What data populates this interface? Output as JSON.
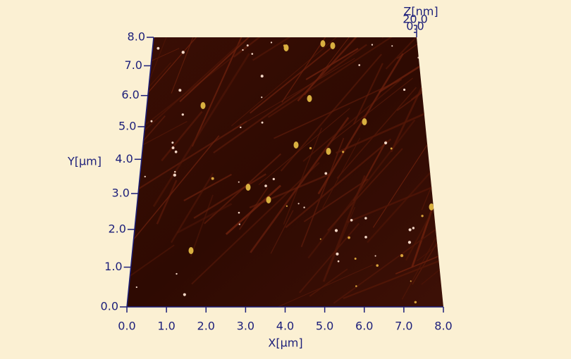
{
  "chart_data": {
    "type": "surface",
    "xlabel": "X[µm]",
    "ylabel": "Y[µm]",
    "zlabel": "Z[nm]",
    "xlim": [
      0,
      8
    ],
    "ylim": [
      0,
      8
    ],
    "zlim": [
      0,
      20
    ],
    "xticks": [
      {
        "value": 0,
        "label": "0.0"
      },
      {
        "value": 1,
        "label": "1.0"
      },
      {
        "value": 2,
        "label": "2.0"
      },
      {
        "value": 3,
        "label": "3.0"
      },
      {
        "value": 4,
        "label": "4.0"
      },
      {
        "value": 5,
        "label": "5.0"
      },
      {
        "value": 6,
        "label": "6.0"
      },
      {
        "value": 7,
        "label": "7.0"
      },
      {
        "value": 8,
        "label": "8.0"
      }
    ],
    "yticks": [
      {
        "value": 0,
        "label": "0.0"
      },
      {
        "value": 1,
        "label": "1.0"
      },
      {
        "value": 2,
        "label": "2.0"
      },
      {
        "value": 3,
        "label": "3.0"
      },
      {
        "value": 4,
        "label": "4.0"
      },
      {
        "value": 5,
        "label": "5.0"
      },
      {
        "value": 6,
        "label": "6.0"
      },
      {
        "value": 7,
        "label": "7.0"
      },
      {
        "value": 8,
        "label": "8.0"
      }
    ],
    "zticks": [
      {
        "value": 0,
        "label": "0.0"
      },
      {
        "value": 20,
        "label": "20.0"
      }
    ]
  }
}
